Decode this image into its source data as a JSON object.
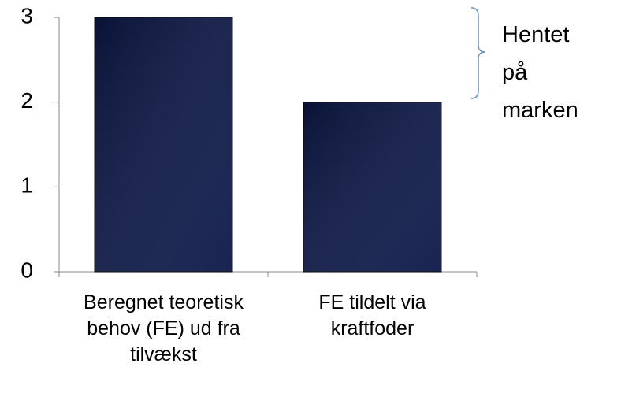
{
  "chart_data": {
    "type": "bar",
    "categories": [
      "Beregnet teoretisk behov (FE) ud fra tilvækst",
      "FE tildelt via kraftfoder"
    ],
    "values": [
      3,
      2
    ],
    "color": "#0c1848",
    "ylim": [
      0,
      3
    ],
    "yticks": [
      0,
      1,
      2,
      3
    ],
    "annotation": "Hentet på marken"
  }
}
